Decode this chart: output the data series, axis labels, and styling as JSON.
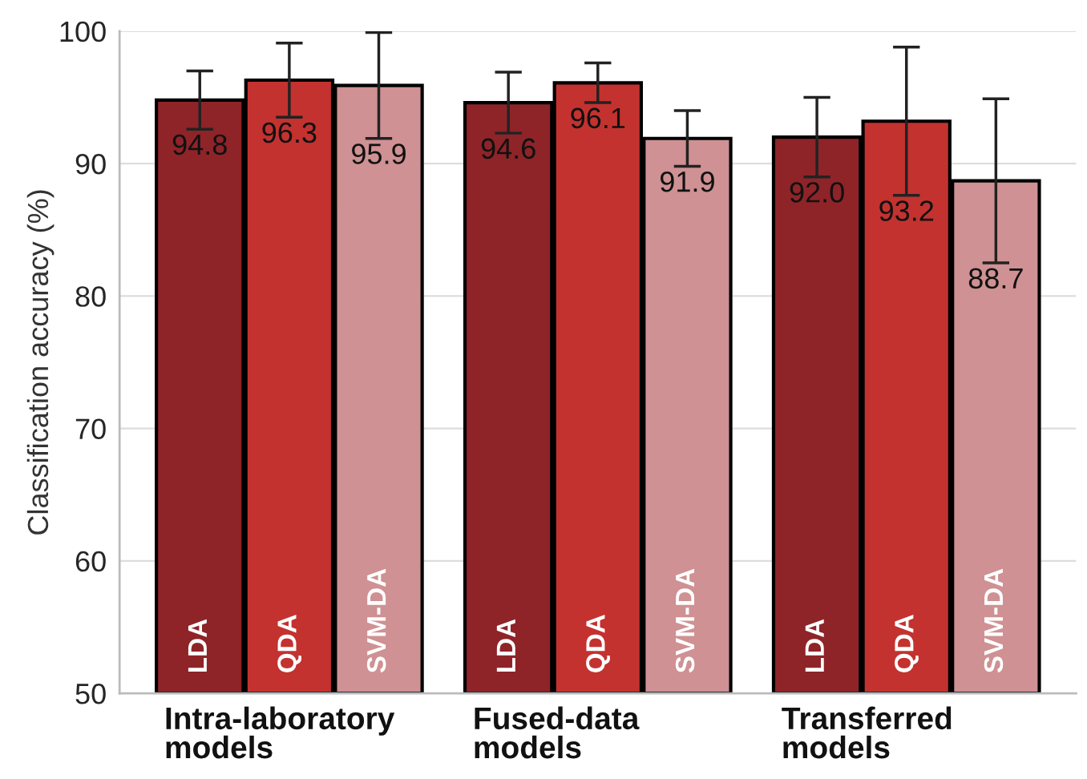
{
  "chart_data": {
    "type": "bar",
    "ylabel": "Classification accuracy (%)",
    "categories": [
      "Intra-laboratory\nmodels",
      "Fused-data\nmodels",
      "Transferred\nmodels"
    ],
    "series": [
      {
        "name": "LDA",
        "color": "#8e2428",
        "values": [
          94.8,
          94.6,
          92.0
        ],
        "errors": [
          2.2,
          2.3,
          3.0
        ],
        "value_labels": [
          "94.8",
          "94.6",
          "92.0"
        ]
      },
      {
        "name": "QDA",
        "color": "#c3322f",
        "values": [
          96.3,
          96.1,
          93.2
        ],
        "errors": [
          2.8,
          1.5,
          5.6
        ],
        "value_labels": [
          "96.3",
          "96.1",
          "93.2"
        ]
      },
      {
        "name": "SVM-DA",
        "color": "#cf9193",
        "values": [
          95.9,
          91.9,
          88.7
        ],
        "errors": [
          4.0,
          2.1,
          6.2
        ],
        "value_labels": [
          "95.9",
          "91.9",
          "88.7"
        ]
      }
    ],
    "ylim": [
      50,
      100
    ],
    "yticks": [
      50,
      60,
      70,
      80,
      90,
      100
    ],
    "grid": "y",
    "legend": false
  }
}
